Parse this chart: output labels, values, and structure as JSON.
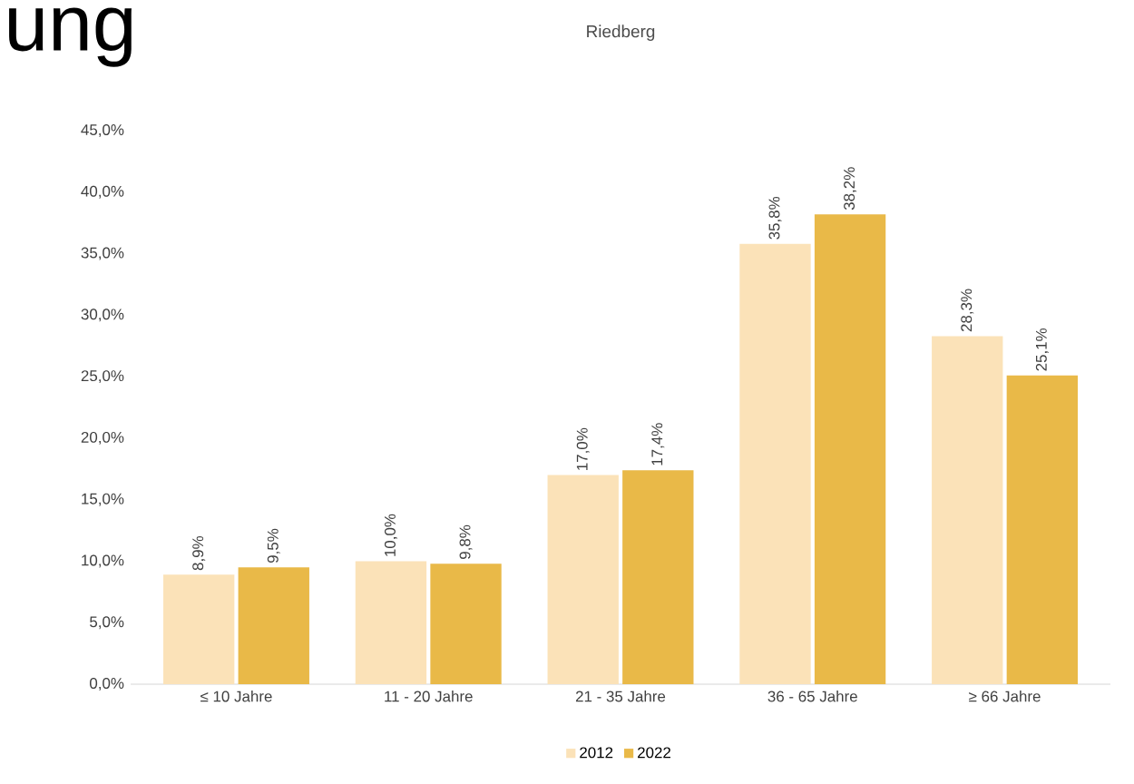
{
  "chart_data": {
    "type": "bar",
    "title": "Riedberg",
    "annotations": [
      "ung"
    ],
    "categories": [
      "≤ 10 Jahre",
      "11 - 20 Jahre",
      "21 - 35 Jahre",
      "36 - 65 Jahre",
      "≥ 66 Jahre"
    ],
    "series": [
      {
        "name": "2012",
        "color": "#fbe2b8",
        "values": [
          8.9,
          10.0,
          17.0,
          35.8,
          28.3
        ],
        "value_labels": [
          "8,9%",
          "10,0%",
          "17,0%",
          "35,8%",
          "28,3%"
        ]
      },
      {
        "name": "2022",
        "color": "#e9b948",
        "values": [
          9.5,
          9.8,
          17.4,
          38.2,
          25.1
        ],
        "value_labels": [
          "9,5%",
          "9,8%",
          "17,4%",
          "38,2%",
          "25,1%"
        ]
      }
    ],
    "ylim": [
      0,
      45
    ],
    "yticks": [
      {
        "value": 0,
        "label": "0,0%"
      },
      {
        "value": 5,
        "label": "5,0%"
      },
      {
        "value": 10,
        "label": "10,0%"
      },
      {
        "value": 15,
        "label": "15,0%"
      },
      {
        "value": 20,
        "label": "20,0%"
      },
      {
        "value": 25,
        "label": "25,0%"
      },
      {
        "value": 30,
        "label": "30,0%"
      },
      {
        "value": 35,
        "label": "35,0%"
      },
      {
        "value": 40,
        "label": "40,0%"
      },
      {
        "value": 45,
        "label": "45,0%"
      }
    ],
    "legend": "bottom"
  }
}
